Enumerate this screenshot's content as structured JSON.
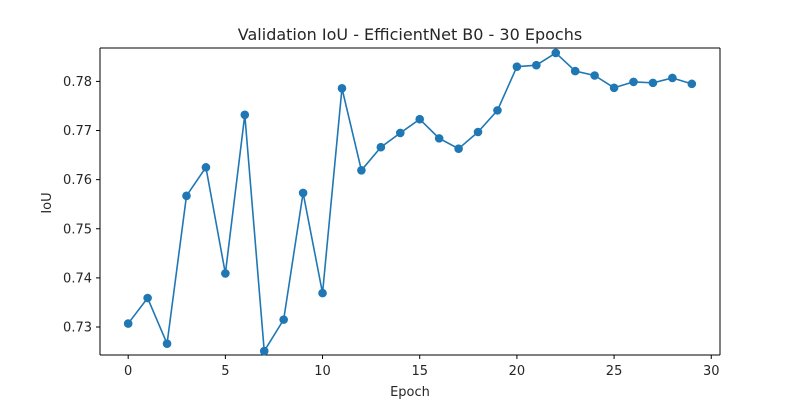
{
  "chart_data": {
    "type": "line",
    "title": "Validation IoU - EfficientNet B0 - 30 Epochs",
    "xlabel": "Epoch",
    "ylabel": "IoU",
    "xlim": [
      -1.45,
      30.45
    ],
    "ylim": [
      0.7243,
      0.7868
    ],
    "xticks": [
      0,
      5,
      10,
      15,
      20,
      25,
      30
    ],
    "yticks": [
      0.73,
      0.74,
      0.75,
      0.76,
      0.77,
      0.78
    ],
    "xtick_labels": [
      "0",
      "5",
      "10",
      "15",
      "20",
      "25",
      "30"
    ],
    "ytick_labels": [
      "0.73",
      "0.74",
      "0.75",
      "0.76",
      "0.77",
      "0.78"
    ],
    "grid": false,
    "color": "#1f77b4",
    "marker": "circle",
    "x": [
      0,
      1,
      2,
      3,
      4,
      5,
      6,
      7,
      8,
      9,
      10,
      11,
      12,
      13,
      14,
      15,
      16,
      17,
      18,
      19,
      20,
      21,
      22,
      23,
      24,
      25,
      26,
      27,
      28,
      29
    ],
    "series": [
      {
        "values": [
          0.7307,
          0.7359,
          0.7266,
          0.7567,
          0.7625,
          0.7409,
          0.7732,
          0.7251,
          0.7315,
          0.7573,
          0.7369,
          0.7786,
          0.7619,
          0.7666,
          0.7695,
          0.7723,
          0.7684,
          0.7663,
          0.7697,
          0.7741,
          0.783,
          0.7833,
          0.7858,
          0.7821,
          0.7812,
          0.7787,
          0.7799,
          0.7797,
          0.7807,
          0.7795
        ]
      }
    ]
  }
}
